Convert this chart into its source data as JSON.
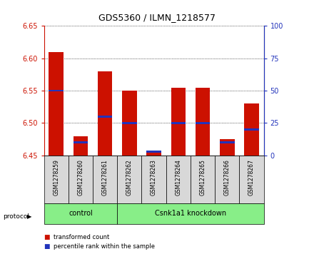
{
  "title": "GDS5360 / ILMN_1218577",
  "samples": [
    "GSM1278259",
    "GSM1278260",
    "GSM1278261",
    "GSM1278262",
    "GSM1278263",
    "GSM1278264",
    "GSM1278265",
    "GSM1278266",
    "GSM1278267"
  ],
  "transformed_count": [
    6.61,
    6.48,
    6.58,
    6.55,
    6.455,
    6.555,
    6.555,
    6.475,
    6.53
  ],
  "percentile_rank": [
    50,
    10,
    30,
    25,
    3,
    25,
    25,
    10,
    20
  ],
  "groups": [
    {
      "label": "control",
      "start": 0,
      "end": 3
    },
    {
      "label": "Csnk1a1 knockdown",
      "start": 3,
      "end": 9
    }
  ],
  "ylim_left": [
    6.45,
    6.65
  ],
  "ylim_right": [
    0,
    100
  ],
  "yticks_left": [
    6.45,
    6.5,
    6.55,
    6.6,
    6.65
  ],
  "yticks_right": [
    0,
    25,
    50,
    75,
    100
  ],
  "bar_color": "#cc1100",
  "percentile_color": "#2233bb",
  "group_bg_color": "#88ee88",
  "sample_bg_color": "#d8d8d8",
  "protocol_label": "protocol",
  "legend_items": [
    {
      "label": "transformed count",
      "color": "#cc1100"
    },
    {
      "label": "percentile rank within the sample",
      "color": "#2233bb"
    }
  ],
  "bar_bottom": 6.45,
  "percentile_bar_height": 0.003
}
